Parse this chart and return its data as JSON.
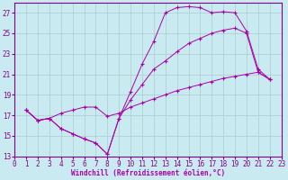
{
  "xlabel": "Windchill (Refroidissement éolien,°C)",
  "bg_color": "#c8eaf0",
  "line_color": "#aa00aa",
  "grid_color": "#aacccc",
  "xlim": [
    0,
    23
  ],
  "ylim": [
    13,
    28
  ],
  "yticks": [
    13,
    15,
    17,
    19,
    21,
    23,
    25,
    27
  ],
  "xticks": [
    0,
    1,
    2,
    3,
    4,
    5,
    6,
    7,
    8,
    9,
    10,
    11,
    12,
    13,
    14,
    15,
    16,
    17,
    18,
    19,
    20,
    21,
    22,
    23
  ],
  "series": [
    {
      "x": [
        1,
        2,
        3,
        4,
        5,
        6,
        7,
        8,
        9,
        10,
        11,
        12,
        13,
        14,
        15,
        16,
        17,
        18,
        19,
        20,
        21,
        22
      ],
      "y": [
        17.5,
        16.5,
        16.7,
        15.7,
        15.2,
        14.7,
        14.3,
        13.2,
        16.7,
        19.3,
        22.0,
        24.2,
        27.0,
        27.5,
        27.6,
        27.5,
        27.0,
        27.1,
        27.0,
        25.2,
        21.5,
        20.5
      ]
    },
    {
      "x": [
        1,
        2,
        3,
        4,
        5,
        6,
        7,
        8,
        9,
        10,
        11,
        12,
        13,
        14,
        15,
        16,
        17,
        18,
        19,
        20,
        21,
        22
      ],
      "y": [
        17.5,
        16.5,
        16.7,
        15.7,
        15.2,
        14.7,
        14.3,
        13.2,
        16.7,
        18.5,
        20.0,
        21.5,
        22.3,
        23.2,
        24.0,
        24.5,
        25.0,
        25.3,
        25.5,
        25.0,
        21.2,
        20.5
      ]
    },
    {
      "x": [
        1,
        2,
        3,
        4,
        5,
        6,
        7,
        8,
        9,
        10,
        11,
        12,
        13,
        14,
        15,
        16,
        17,
        18,
        19,
        20,
        21,
        22
      ],
      "y": [
        17.5,
        16.5,
        16.7,
        17.2,
        17.5,
        17.8,
        17.8,
        16.9,
        17.2,
        17.8,
        18.2,
        18.6,
        19.0,
        19.4,
        19.7,
        20.0,
        20.3,
        20.6,
        20.8,
        21.0,
        21.2,
        20.5
      ]
    }
  ],
  "tick_color": "#880088",
  "tick_fontsize": 5.5,
  "xlabel_fontsize": 5.5
}
